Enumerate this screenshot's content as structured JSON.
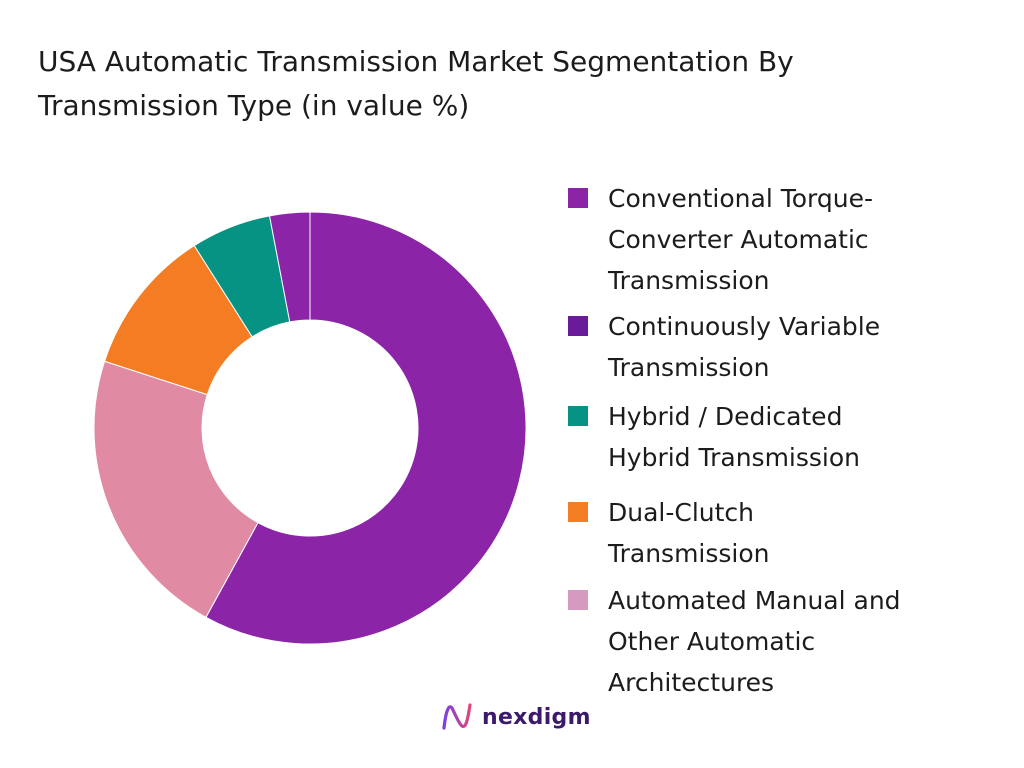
{
  "title": "USA Automatic Transmission Market Segmentation By Transmission Type (in value %)",
  "chart_data": {
    "type": "pie",
    "donut": true,
    "title": "USA Automatic Transmission Market Segmentation By Transmission Type (in value %)",
    "legend_position": "right",
    "slices": [
      {
        "label": "Conventional Torque-\nConverter Automatic\nTransmission",
        "value": 58,
        "color": "#8C24A8"
      },
      {
        "label": "Automated Manual and\nOther Automatic\nArchitectures",
        "value": 22,
        "color": "#E08AA4"
      },
      {
        "label": "Dual-Clutch\nTransmission",
        "value": 11,
        "color": "#F47C22"
      },
      {
        "label": "Hybrid / Dedicated\nHybrid Transmission",
        "value": 6,
        "color": "#079383"
      },
      {
        "label": "Continuously Variable\nTransmission",
        "value": 3,
        "color": "#8C24A8"
      }
    ]
  },
  "legend": [
    {
      "label": "Conventional Torque-\nConverter Automatic\nTransmission",
      "color": "#8C24A8"
    },
    {
      "label": "Continuously Variable\nTransmission",
      "color": "#6A1B9A"
    },
    {
      "label": "Hybrid / Dedicated\nHybrid Transmission",
      "color": "#079383"
    },
    {
      "label": "Dual-Clutch\nTransmission",
      "color": "#F47C22"
    },
    {
      "label": "Automated Manual and\nOther Automatic\nArchitectures",
      "color": "#D69AC0"
    }
  ],
  "logo": {
    "text": "nexdigm",
    "icon": "nexdigm-logo-icon"
  }
}
